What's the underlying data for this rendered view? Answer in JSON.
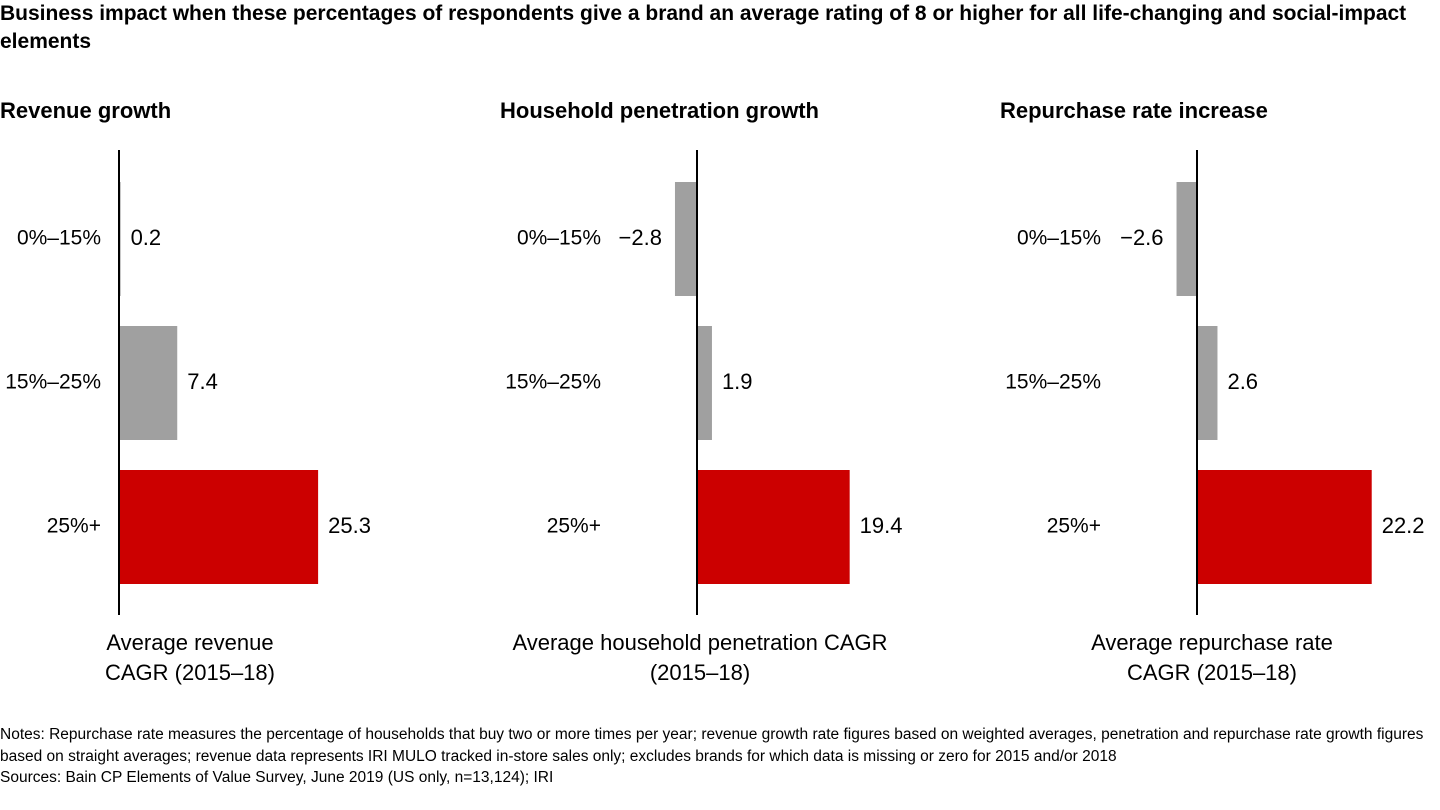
{
  "title": "Business impact when these percentages of respondents give a brand an average rating of 8 or higher for all life-changing and social-impact elements",
  "chart_data": [
    {
      "type": "bar",
      "orientation": "horizontal",
      "title": "Revenue growth",
      "categories": [
        "0%–15%",
        "15%–25%",
        "25%+"
      ],
      "values": [
        0.2,
        7.4,
        25.3
      ],
      "colors": [
        "#a0a0a0",
        "#a0a0a0",
        "#cc0000"
      ],
      "xlabel": "Average revenue CAGR (2015–18)"
    },
    {
      "type": "bar",
      "orientation": "horizontal",
      "title": "Household penetration growth",
      "categories": [
        "0%–15%",
        "15%–25%",
        "25%+"
      ],
      "values": [
        -2.8,
        1.9,
        19.4
      ],
      "value_labels": [
        "−2.8",
        "1.9",
        "19.4"
      ],
      "colors": [
        "#a0a0a0",
        "#a0a0a0",
        "#cc0000"
      ],
      "xlabel": "Average household penetration CAGR (2015–18)"
    },
    {
      "type": "bar",
      "orientation": "horizontal",
      "title": "Repurchase rate increase",
      "categories": [
        "0%–15%",
        "15%–25%",
        "25%+"
      ],
      "values": [
        -2.6,
        2.6,
        22.2
      ],
      "value_labels": [
        "−2.6",
        "2.6",
        "22.2"
      ],
      "colors": [
        "#a0a0a0",
        "#a0a0a0",
        "#cc0000"
      ],
      "xlabel": "Average repurchase rate CAGR (2015–18)"
    }
  ],
  "notes": "Notes: Repurchase rate measures the percentage of households that buy two or more times per year; revenue growth rate figures based on weighted averages, penetration and repurchase rate growth figures based on straight averages; revenue data represents IRI MULO tracked in-store sales only; excludes brands for which data is missing or zero for 2015 and/or 2018",
  "sources": "Sources: Bain CP Elements of Value Survey, June 2019 (US only, n=13,124); IRI"
}
